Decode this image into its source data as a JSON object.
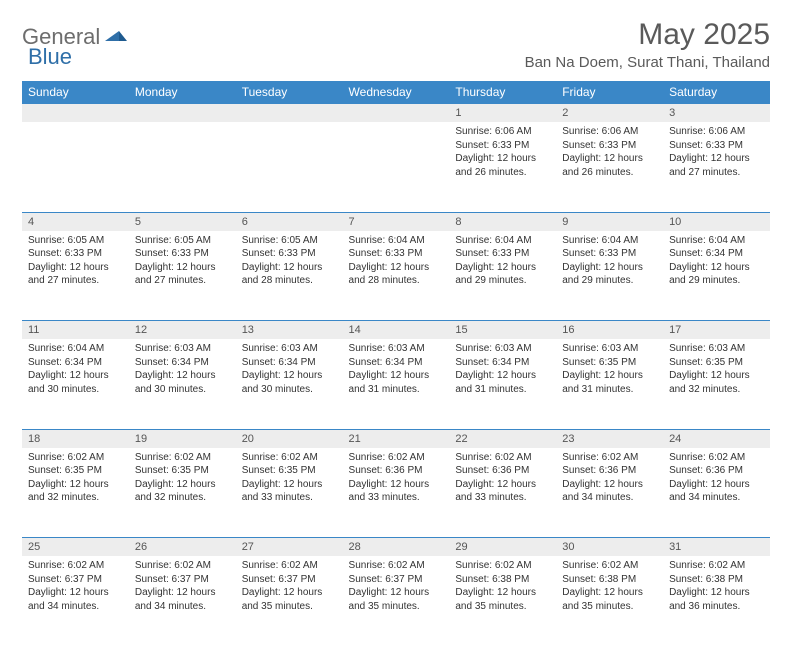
{
  "brand": {
    "part1": "General",
    "part2": "Blue"
  },
  "title": "May 2025",
  "location": "Ban Na Doem, Surat Thani, Thailand",
  "colors": {
    "header_bg": "#3a87c7",
    "header_text": "#ffffff",
    "daynum_bg": "#ededed",
    "border": "#3a87c7",
    "brand_gray": "#6d6d6d",
    "brand_blue": "#2f6fa8"
  },
  "weekdays": [
    "Sunday",
    "Monday",
    "Tuesday",
    "Wednesday",
    "Thursday",
    "Friday",
    "Saturday"
  ],
  "weeks": [
    [
      null,
      null,
      null,
      null,
      {
        "n": "1",
        "sunrise": "6:06 AM",
        "sunset": "6:33 PM",
        "daylight": "12 hours and 26 minutes."
      },
      {
        "n": "2",
        "sunrise": "6:06 AM",
        "sunset": "6:33 PM",
        "daylight": "12 hours and 26 minutes."
      },
      {
        "n": "3",
        "sunrise": "6:06 AM",
        "sunset": "6:33 PM",
        "daylight": "12 hours and 27 minutes."
      }
    ],
    [
      {
        "n": "4",
        "sunrise": "6:05 AM",
        "sunset": "6:33 PM",
        "daylight": "12 hours and 27 minutes."
      },
      {
        "n": "5",
        "sunrise": "6:05 AM",
        "sunset": "6:33 PM",
        "daylight": "12 hours and 27 minutes."
      },
      {
        "n": "6",
        "sunrise": "6:05 AM",
        "sunset": "6:33 PM",
        "daylight": "12 hours and 28 minutes."
      },
      {
        "n": "7",
        "sunrise": "6:04 AM",
        "sunset": "6:33 PM",
        "daylight": "12 hours and 28 minutes."
      },
      {
        "n": "8",
        "sunrise": "6:04 AM",
        "sunset": "6:33 PM",
        "daylight": "12 hours and 29 minutes."
      },
      {
        "n": "9",
        "sunrise": "6:04 AM",
        "sunset": "6:33 PM",
        "daylight": "12 hours and 29 minutes."
      },
      {
        "n": "10",
        "sunrise": "6:04 AM",
        "sunset": "6:34 PM",
        "daylight": "12 hours and 29 minutes."
      }
    ],
    [
      {
        "n": "11",
        "sunrise": "6:04 AM",
        "sunset": "6:34 PM",
        "daylight": "12 hours and 30 minutes."
      },
      {
        "n": "12",
        "sunrise": "6:03 AM",
        "sunset": "6:34 PM",
        "daylight": "12 hours and 30 minutes."
      },
      {
        "n": "13",
        "sunrise": "6:03 AM",
        "sunset": "6:34 PM",
        "daylight": "12 hours and 30 minutes."
      },
      {
        "n": "14",
        "sunrise": "6:03 AM",
        "sunset": "6:34 PM",
        "daylight": "12 hours and 31 minutes."
      },
      {
        "n": "15",
        "sunrise": "6:03 AM",
        "sunset": "6:34 PM",
        "daylight": "12 hours and 31 minutes."
      },
      {
        "n": "16",
        "sunrise": "6:03 AM",
        "sunset": "6:35 PM",
        "daylight": "12 hours and 31 minutes."
      },
      {
        "n": "17",
        "sunrise": "6:03 AM",
        "sunset": "6:35 PM",
        "daylight": "12 hours and 32 minutes."
      }
    ],
    [
      {
        "n": "18",
        "sunrise": "6:02 AM",
        "sunset": "6:35 PM",
        "daylight": "12 hours and 32 minutes."
      },
      {
        "n": "19",
        "sunrise": "6:02 AM",
        "sunset": "6:35 PM",
        "daylight": "12 hours and 32 minutes."
      },
      {
        "n": "20",
        "sunrise": "6:02 AM",
        "sunset": "6:35 PM",
        "daylight": "12 hours and 33 minutes."
      },
      {
        "n": "21",
        "sunrise": "6:02 AM",
        "sunset": "6:36 PM",
        "daylight": "12 hours and 33 minutes."
      },
      {
        "n": "22",
        "sunrise": "6:02 AM",
        "sunset": "6:36 PM",
        "daylight": "12 hours and 33 minutes."
      },
      {
        "n": "23",
        "sunrise": "6:02 AM",
        "sunset": "6:36 PM",
        "daylight": "12 hours and 34 minutes."
      },
      {
        "n": "24",
        "sunrise": "6:02 AM",
        "sunset": "6:36 PM",
        "daylight": "12 hours and 34 minutes."
      }
    ],
    [
      {
        "n": "25",
        "sunrise": "6:02 AM",
        "sunset": "6:37 PM",
        "daylight": "12 hours and 34 minutes."
      },
      {
        "n": "26",
        "sunrise": "6:02 AM",
        "sunset": "6:37 PM",
        "daylight": "12 hours and 34 minutes."
      },
      {
        "n": "27",
        "sunrise": "6:02 AM",
        "sunset": "6:37 PM",
        "daylight": "12 hours and 35 minutes."
      },
      {
        "n": "28",
        "sunrise": "6:02 AM",
        "sunset": "6:37 PM",
        "daylight": "12 hours and 35 minutes."
      },
      {
        "n": "29",
        "sunrise": "6:02 AM",
        "sunset": "6:38 PM",
        "daylight": "12 hours and 35 minutes."
      },
      {
        "n": "30",
        "sunrise": "6:02 AM",
        "sunset": "6:38 PM",
        "daylight": "12 hours and 35 minutes."
      },
      {
        "n": "31",
        "sunrise": "6:02 AM",
        "sunset": "6:38 PM",
        "daylight": "12 hours and 36 minutes."
      }
    ]
  ],
  "labels": {
    "sunrise": "Sunrise:",
    "sunset": "Sunset:",
    "daylight": "Daylight:"
  }
}
